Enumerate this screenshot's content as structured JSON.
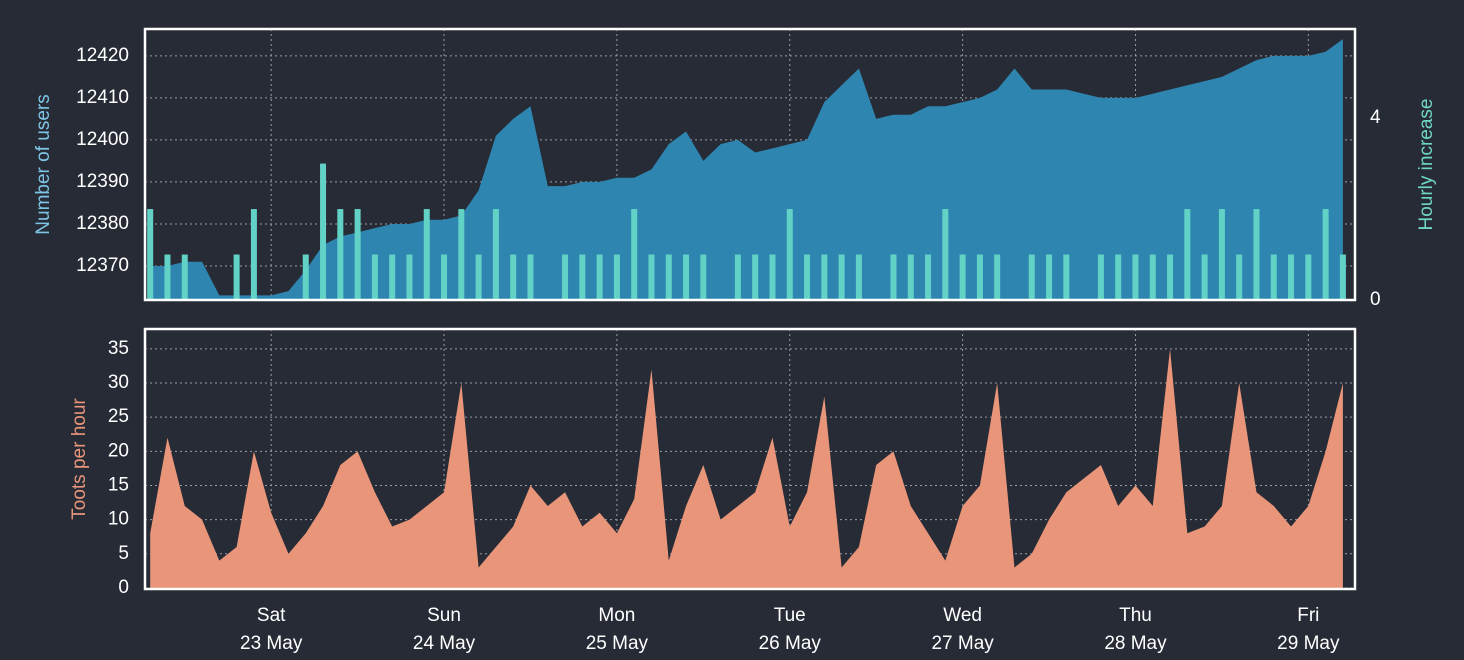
{
  "chart_data": [
    {
      "type": "area",
      "ylabel": "Number of users",
      "y2label": "Hourly increase",
      "x": [
        22.3,
        22.4,
        22.5,
        22.6,
        22.7,
        22.8,
        22.9,
        23.0,
        23.1,
        23.2,
        23.3,
        23.4,
        23.5,
        23.6,
        23.7,
        23.8,
        23.9,
        24.0,
        24.1,
        24.2,
        24.3,
        24.4,
        24.5,
        24.6,
        24.7,
        24.8,
        24.9,
        25.0,
        25.1,
        25.2,
        25.3,
        25.4,
        25.5,
        25.6,
        25.7,
        25.8,
        25.9,
        26.0,
        26.1,
        26.2,
        26.3,
        26.4,
        26.5,
        26.6,
        26.7,
        26.8,
        26.9,
        27.0,
        27.1,
        27.2,
        27.3,
        27.4,
        27.5,
        27.6,
        27.7,
        27.8,
        27.9,
        28.0,
        28.1,
        28.2,
        28.3,
        28.4,
        28.5,
        28.6,
        28.7,
        28.8,
        28.9,
        29.0,
        29.1,
        29.2
      ],
      "series": [
        {
          "type": "area",
          "color": "#2e86b0",
          "values": [
            12370,
            12370,
            12371,
            12371,
            12363,
            12363,
            12363,
            12363,
            12364,
            12369,
            12375,
            12377,
            12378,
            12379,
            12380,
            12380,
            12381,
            12381,
            12382,
            12388,
            12401,
            12405,
            12408,
            12389,
            12389,
            12390,
            12390,
            12391,
            12391,
            12393,
            12399,
            12402,
            12395,
            12399,
            12400,
            12397,
            12398,
            12399,
            12400,
            12409,
            12413,
            12417,
            12405,
            12406,
            12406,
            12408,
            12408,
            12409,
            12410,
            12412,
            12417,
            12412,
            12412,
            12412,
            12411,
            12410,
            12410,
            12410,
            12411,
            12412,
            12413,
            12414,
            12415,
            12417,
            12419,
            12420,
            12420,
            12420,
            12421,
            12424
          ]
        },
        {
          "type": "bar",
          "axis": "y2",
          "color": "#63d2c6",
          "values": [
            2,
            1,
            1,
            0,
            0,
            1,
            2,
            0,
            0,
            1,
            3,
            2,
            2,
            1,
            1,
            1,
            2,
            1,
            2,
            1,
            2,
            1,
            1,
            0,
            1,
            1,
            1,
            1,
            2,
            1,
            1,
            1,
            1,
            0,
            1,
            1,
            1,
            2,
            1,
            1,
            1,
            1,
            0,
            1,
            1,
            1,
            2,
            1,
            1,
            1,
            0,
            1,
            1,
            1,
            0,
            1,
            1,
            1,
            1,
            1,
            2,
            1,
            2,
            1,
            2,
            1,
            1,
            1,
            2,
            1
          ]
        }
      ],
      "xlim": [
        22.27,
        29.27
      ],
      "ylim": [
        12361.9,
        12426.4
      ],
      "yticks": [
        12370,
        12380,
        12390,
        12400,
        12410,
        12420
      ],
      "y2lim": [
        0,
        5.96
      ],
      "y2ticks": [
        0,
        4
      ],
      "grid": true
    },
    {
      "type": "area",
      "ylabel": "Toots per hour",
      "x": [
        22.3,
        22.4,
        22.5,
        22.6,
        22.7,
        22.8,
        22.9,
        23.0,
        23.1,
        23.2,
        23.3,
        23.4,
        23.5,
        23.6,
        23.7,
        23.8,
        23.9,
        24.0,
        24.1,
        24.2,
        24.3,
        24.4,
        24.5,
        24.6,
        24.7,
        24.8,
        24.9,
        25.0,
        25.1,
        25.2,
        25.3,
        25.4,
        25.5,
        25.6,
        25.7,
        25.8,
        25.9,
        26.0,
        26.1,
        26.2,
        26.3,
        26.4,
        26.5,
        26.6,
        26.7,
        26.8,
        26.9,
        27.0,
        27.1,
        27.2,
        27.3,
        27.4,
        27.5,
        27.6,
        27.7,
        27.8,
        27.9,
        28.0,
        28.1,
        28.2,
        28.3,
        28.4,
        28.5,
        28.6,
        28.7,
        28.8,
        28.9,
        29.0,
        29.1,
        29.2
      ],
      "series": [
        {
          "type": "area",
          "color": "#e8957a",
          "values": [
            8,
            22,
            12,
            10,
            4,
            6,
            20,
            11,
            5,
            8,
            12,
            18,
            20,
            14,
            9,
            10,
            12,
            14,
            30,
            3,
            6,
            9,
            15,
            12,
            14,
            9,
            11,
            8,
            13,
            32,
            4,
            12,
            18,
            10,
            12,
            14,
            22,
            9,
            14,
            28,
            3,
            6,
            18,
            20,
            12,
            8,
            4,
            12,
            15,
            30,
            3,
            5,
            10,
            14,
            16,
            18,
            12,
            15,
            12,
            35,
            8,
            9,
            12,
            30,
            14,
            12,
            9,
            12,
            20,
            30
          ]
        }
      ],
      "xlim": [
        22.27,
        29.27
      ],
      "xticks": [
        {
          "value": 23,
          "label": [
            "Sat",
            "23 May"
          ]
        },
        {
          "value": 24,
          "label": [
            "Sun",
            "24 May"
          ]
        },
        {
          "value": 25,
          "label": [
            "Mon",
            "25 May"
          ]
        },
        {
          "value": 26,
          "label": [
            "Tue",
            "26 May"
          ]
        },
        {
          "value": 27,
          "label": [
            "Wed",
            "27 May"
          ]
        },
        {
          "value": 28,
          "label": [
            "Thu",
            "28 May"
          ]
        },
        {
          "value": 29,
          "label": [
            "Fri",
            "29 May"
          ]
        }
      ],
      "ylim": [
        -0.15,
        37.9
      ],
      "yticks": [
        0,
        5,
        10,
        15,
        20,
        25,
        30,
        35
      ],
      "grid": true
    }
  ]
}
